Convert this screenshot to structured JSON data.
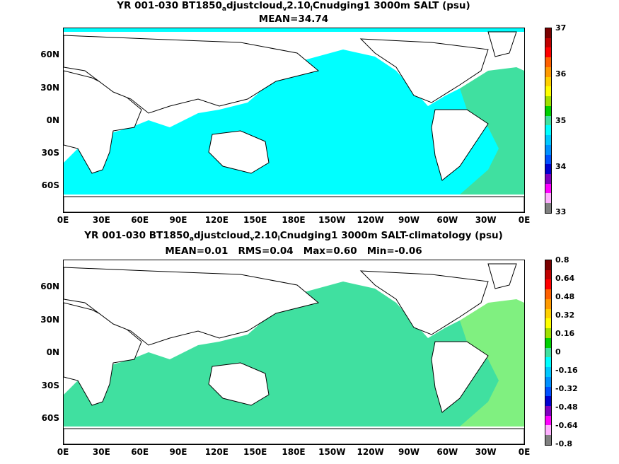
{
  "panel1": {
    "title_pre": "YR 001-030 BT1850",
    "title_sub1": "a",
    "title_mid": "djustcloud",
    "title_sub2": "v",
    "title_mid2": "2.10",
    "title_sub3": "l",
    "title_post": "Cnudging1 3000m SALT (psu)",
    "subtitle": "MEAN=34.74",
    "ocean_color": "#00ffff",
    "patch_color": "#40e0a0",
    "colorbar": {
      "labels": [
        "37",
        "36",
        "35",
        "34",
        "33"
      ],
      "colors": [
        "#7a0000",
        "#c00000",
        "#ff0000",
        "#ff6000",
        "#ff9a00",
        "#ffd000",
        "#ffff00",
        "#a0e000",
        "#00d000",
        "#40e0a0",
        "#00ffff",
        "#00c8ff",
        "#0090ff",
        "#0050ff",
        "#0000d0",
        "#8000c0",
        "#ff00ff",
        "#ffb0ff",
        "#808080"
      ]
    }
  },
  "panel2": {
    "title_pre": "YR 001-030 BT1850",
    "title_sub1": "a",
    "title_mid": "djustcloud",
    "title_sub2": "v",
    "title_mid2": "2.10",
    "title_sub3": "l",
    "title_post": "Cnudging1 3000m SALT-climatology (psu)",
    "subtitle": "MEAN=0.01   RMS=0.04   Max=0.60   Min=-0.06",
    "ocean_color": "#40e0a0",
    "patch_color": "#80f080",
    "colorbar": {
      "labels": [
        "0.8",
        "0.64",
        "0.48",
        "0.32",
        "0.16",
        "0",
        "-0.16",
        "-0.32",
        "-0.48",
        "-0.64",
        "-0.8"
      ],
      "colors": [
        "#7a0000",
        "#c00000",
        "#ff0000",
        "#ff6000",
        "#ff9a00",
        "#ffd000",
        "#ffff00",
        "#a0e000",
        "#00d000",
        "#40e0a0",
        "#00ffff",
        "#00c8ff",
        "#0090ff",
        "#0050ff",
        "#0000d0",
        "#8000c0",
        "#ff00ff",
        "#ffb0ff",
        "#808080"
      ]
    }
  },
  "axes": {
    "lat_labels": [
      "60N",
      "30N",
      "0N",
      "30S",
      "60S"
    ],
    "lon_labels": [
      "0E",
      "30E",
      "60E",
      "90E",
      "120E",
      "150E",
      "180E",
      "150W",
      "120W",
      "90W",
      "60W",
      "30W",
      "0E"
    ]
  }
}
